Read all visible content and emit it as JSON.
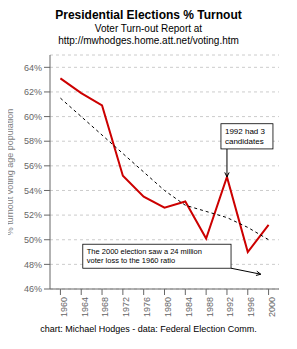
{
  "chart_data": {
    "type": "line",
    "title": "Presidential Elections % Turnout",
    "subtitle": [
      "Voter Turn-out Report at",
      "http://mwhodges.home.att.net/voting.htm"
    ],
    "footer": "chart: Michael Hodges  -  data: Federal Election Comm.",
    "y_label": "% turnout voting age population",
    "x": [
      1960,
      1964,
      1968,
      1972,
      1976,
      1980,
      1984,
      1988,
      1992,
      1996,
      2000
    ],
    "series": [
      {
        "color": "#cc0000",
        "line_style": "solid",
        "values": [
          63.1,
          61.9,
          60.9,
          55.2,
          53.5,
          52.6,
          53.1,
          50.1,
          55.1,
          49.0,
          51.2
        ]
      },
      {
        "color": "#000000",
        "line_style": "dashed",
        "values": [
          61.5,
          60.0,
          58.5,
          57.0,
          55.5,
          54.0,
          52.8,
          52.3,
          51.8,
          51.0,
          50.0
        ]
      }
    ],
    "xlim": [
      1958,
      2002
    ],
    "xticks": [
      1960,
      1964,
      1968,
      1972,
      1976,
      1980,
      1984,
      1988,
      1992,
      1996,
      2000
    ],
    "ylim": [
      46,
      65
    ],
    "yticks": [
      {
        "value": 46,
        "label": "46%"
      },
      {
        "value": 48,
        "label": "48%"
      },
      {
        "value": 50,
        "label": "50%"
      },
      {
        "value": 52,
        "label": "52%"
      },
      {
        "value": 54,
        "label": "54%"
      },
      {
        "value": 56,
        "label": "56%"
      },
      {
        "value": 58,
        "label": "58%"
      },
      {
        "value": 60,
        "label": "60%"
      },
      {
        "value": 62,
        "label": "62%"
      },
      {
        "value": 64,
        "label": "64%"
      }
    ],
    "grid": true,
    "annotations": [
      {
        "text": "1992 had 3\ncandidates",
        "x": 1992,
        "y": 55.1
      },
      {
        "text": "The 2000 election saw a 24 million\nvoter loss to the 1960 ratio",
        "x": 1998.5,
        "y": 47.2
      }
    ]
  }
}
